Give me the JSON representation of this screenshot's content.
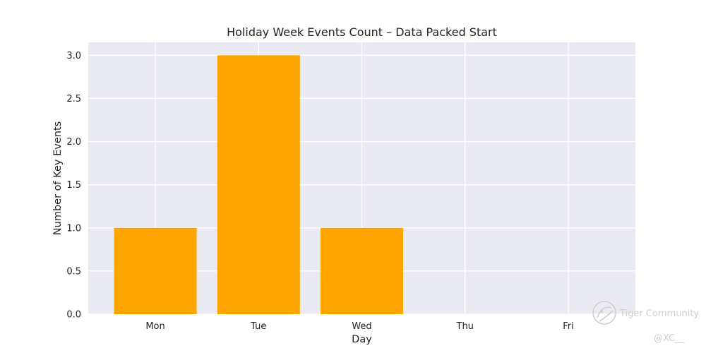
{
  "chart_data": {
    "type": "bar",
    "title": "Holiday Week Events Count – Data Packed Start",
    "xlabel": "Day",
    "ylabel": "Number of Key Events",
    "categories": [
      "Mon",
      "Tue",
      "Wed",
      "Thu",
      "Fri"
    ],
    "values": [
      1,
      3,
      1,
      0,
      0
    ],
    "ylim": [
      0,
      3.15
    ],
    "yticks": [
      0,
      0.5,
      1,
      1.5,
      2,
      2.5,
      3
    ],
    "ytick_labels": [
      "0.0",
      "0.5",
      "1.0",
      "1.5",
      "2.0",
      "2.5",
      "3.0"
    ],
    "grid": true,
    "bar_color": "#FFA500",
    "plot_background": "#EAEAF2",
    "grid_color": "#FFFFFF"
  },
  "watermark": {
    "brand": "Tiger Community",
    "handle": "@XC__"
  }
}
